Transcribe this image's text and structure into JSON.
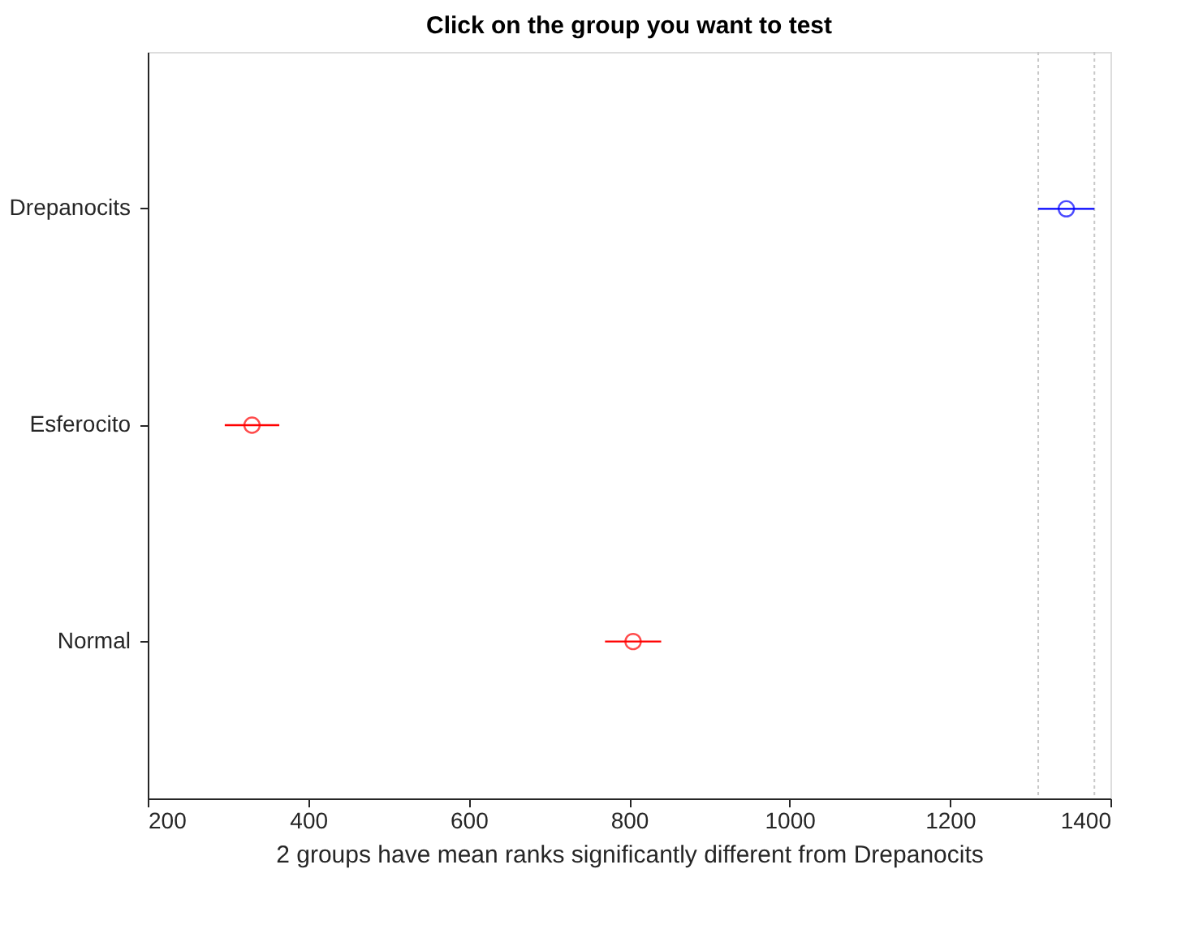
{
  "chart_data": {
    "type": "scatter",
    "orientation": "horizontal",
    "title": "Click on the group you want to test",
    "xlabel": "2 groups have mean ranks significantly different from Drepanocits",
    "categories": [
      "Drepanocits",
      "Esferocito",
      "Normal"
    ],
    "values": [
      1345,
      330,
      805
    ],
    "errors": [
      35,
      34,
      35
    ],
    "colors": [
      "#0000ff",
      "#ff0000",
      "#ff0000"
    ],
    "marker": "circle",
    "xlim": [
      200,
      1400
    ],
    "xticks": [
      200,
      400,
      600,
      800,
      1000,
      1200,
      1400
    ],
    "ref_lines": [
      {
        "axis": "x",
        "value": 1310,
        "label": null,
        "color": "#c8c8c8",
        "line_style": "dotted"
      },
      {
        "axis": "x",
        "value": 1380,
        "label": null,
        "color": "#c8c8c8",
        "line_style": "dotted"
      }
    ],
    "grid": false,
    "legend": false
  }
}
